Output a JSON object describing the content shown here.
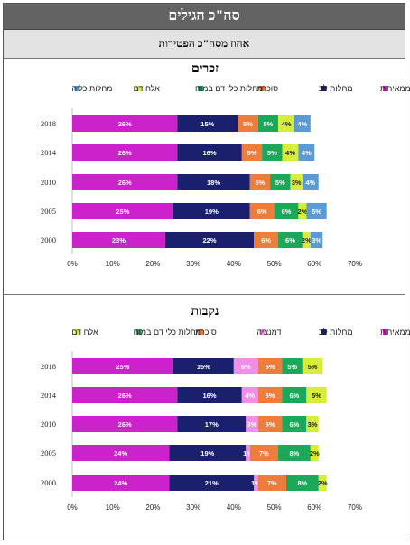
{
  "header": {
    "title": "סה\"כ הגילים",
    "subtitle": "אחוז מסה\"כ הפטירות"
  },
  "chart_data": [
    {
      "type": "bar",
      "orientation": "horizontal",
      "stacked": true,
      "title": "זכרים",
      "categories": [
        "2018",
        "2014",
        "2010",
        "2005",
        "2000"
      ],
      "xlim": [
        0,
        70
      ],
      "xticks": [
        "0%",
        "10%",
        "20%",
        "30%",
        "40%",
        "50%",
        "60%",
        "70%"
      ],
      "grid": false,
      "legend_position": "top",
      "series": [
        {
          "name": "שאתות ממאירות",
          "color": "#cc22cc",
          "values": [
            26,
            26,
            26,
            25,
            23
          ]
        },
        {
          "name": "מחלות לב",
          "color": "#1a1f6e",
          "values": [
            15,
            16,
            18,
            19,
            22
          ]
        },
        {
          "name": "סוכרת",
          "color": "#ee7d3b",
          "values": [
            5,
            5,
            5,
            6,
            6
          ]
        },
        {
          "name": "מחלות כלי דם במוח",
          "color": "#1ba85a",
          "values": [
            5,
            5,
            5,
            6,
            6
          ]
        },
        {
          "name": "אלח דם",
          "color": "#d6ee3a",
          "values": [
            4,
            4,
            3,
            2,
            2
          ]
        },
        {
          "name": "מחלות כליה",
          "color": "#5b9bd5",
          "values": [
            4,
            4,
            4,
            5,
            3
          ]
        }
      ],
      "data_labels": [
        [
          "26%",
          "26%",
          "26%",
          "25%",
          "23%"
        ],
        [
          "15%",
          "16%",
          "18%",
          "19%",
          "22%"
        ],
        [
          "5%",
          "5%",
          "5%",
          "6%",
          "6%"
        ],
        [
          "5%",
          "5%",
          "5%",
          "6%",
          "6%"
        ],
        [
          "4%",
          "4%",
          "3%",
          "2%",
          "2%"
        ],
        [
          "4%",
          "4%",
          "4%",
          "5%",
          "3%"
        ]
      ]
    },
    {
      "type": "bar",
      "orientation": "horizontal",
      "stacked": true,
      "title": "נקבות",
      "categories": [
        "2018",
        "2014",
        "2010",
        "2005",
        "2000"
      ],
      "xlim": [
        0,
        70
      ],
      "xticks": [
        "0%",
        "10%",
        "20%",
        "30%",
        "40%",
        "50%",
        "60%",
        "70%"
      ],
      "grid": false,
      "legend_position": "top",
      "series": [
        {
          "name": "שאתות ממאירות",
          "color": "#cc22cc",
          "values": [
            25,
            26,
            26,
            24,
            24
          ]
        },
        {
          "name": "מחלות לב",
          "color": "#1a1f6e",
          "values": [
            15,
            16,
            17,
            19,
            21
          ]
        },
        {
          "name": "דמנציה",
          "color": "#f08ee8",
          "values": [
            6,
            4,
            3,
            1,
            1
          ]
        },
        {
          "name": "סוכרת",
          "color": "#ee7d3b",
          "values": [
            6,
            6,
            6,
            7,
            7
          ]
        },
        {
          "name": "מחלות כלי דם במוח",
          "color": "#1ba85a",
          "values": [
            5,
            6,
            6,
            8,
            8
          ]
        },
        {
          "name": "אלח דם",
          "color": "#d6ee3a",
          "values": [
            5,
            5,
            3,
            2,
            2
          ]
        }
      ],
      "data_labels": [
        [
          "25%",
          "26%",
          "26%",
          "24%",
          "24%"
        ],
        [
          "15%",
          "16%",
          "17%",
          "19%",
          "21%"
        ],
        [
          "6%",
          "4%",
          "3%",
          "1%",
          "1%"
        ],
        [
          "6%",
          "6%",
          "6%",
          "7%",
          "7%"
        ],
        [
          "5%",
          "6%",
          "6%",
          "8%",
          "8%"
        ],
        [
          "5%",
          "5%",
          "3%",
          "2%",
          "2%"
        ]
      ]
    }
  ]
}
